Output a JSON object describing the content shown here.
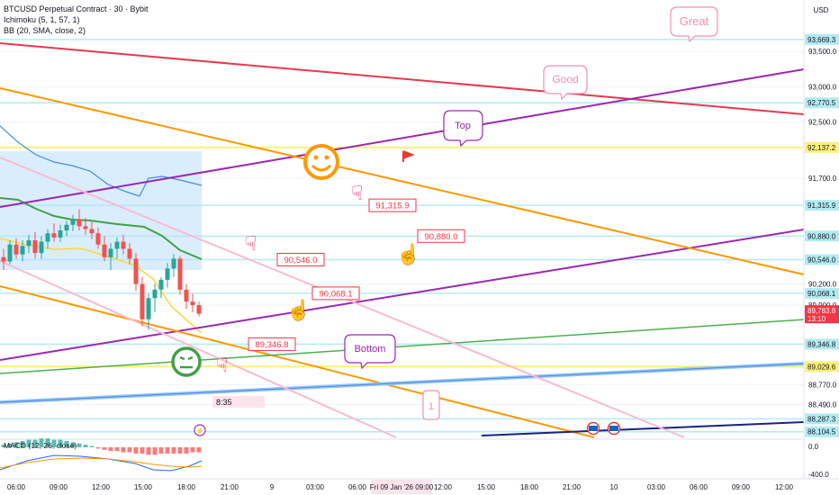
{
  "header": {
    "symbol": "BTCUSD Perpetual Contract · 30 · Bybit",
    "ichimoku": "Ichimoku (5, 1, 57, 1)",
    "bb": "BB (20, SMA, close, 2)",
    "currency": "USD"
  },
  "price_axis": {
    "min": 88050,
    "max": 94050,
    "ticks": [
      {
        "label": "93,500.0",
        "value": 93500
      },
      {
        "label": "93,000.0",
        "value": 93000
      },
      {
        "label": "92,500.0",
        "value": 92500
      },
      {
        "label": "91,700.0",
        "value": 91700
      },
      {
        "label": "90,200.0",
        "value": 90200
      },
      {
        "label": "89,900.0",
        "value": 89900
      },
      {
        "label": "88,770.0",
        "value": 88770
      },
      {
        "label": "88,490.0",
        "value": 88490
      }
    ],
    "highlighted": [
      {
        "label": "93,669.3",
        "value": 93669.3,
        "color": "#b2ebf2"
      },
      {
        "label": "92,770.5",
        "value": 92770.5,
        "color": "#b2ebf2"
      },
      {
        "label": "92,137.2",
        "value": 92137.2,
        "color": "#fff176"
      },
      {
        "label": "91,315.9",
        "value": 91315.9,
        "color": "#b2ebf2"
      },
      {
        "label": "90,880.0",
        "value": 90880,
        "color": "#b2ebf2"
      },
      {
        "label": "90,546.0",
        "value": 90546,
        "color": "#b2ebf2"
      },
      {
        "label": "90,068.1",
        "value": 90068.1,
        "color": "#b2ebf2"
      },
      {
        "label": "89,346.8",
        "value": 89346.8,
        "color": "#b2ebf2"
      },
      {
        "label": "89,029.6",
        "value": 89029.6,
        "color": "#fff176"
      },
      {
        "label": "88,287.3",
        "value": 88287.3,
        "color": "#b2ebf2"
      },
      {
        "label": "88,104.5",
        "value": 88104.5,
        "color": "#b2ebf2"
      }
    ],
    "current_price": {
      "label": "89,783.8",
      "timer": "13:10",
      "value": 89783.8,
      "color": "#f23645"
    },
    "macd_ticks": [
      "0.0",
      "-400.0"
    ]
  },
  "time_axis": {
    "ticks": [
      "06:00",
      "09:00",
      "12:00",
      "15:00",
      "18:00",
      "21:00",
      "9",
      "03:00",
      "06:00",
      "12:00",
      "15:00",
      "18:00",
      "21:00",
      "10",
      "03:00",
      "06:00",
      "09:00",
      "12:00"
    ],
    "highlight": "Fri 09 Jan '26  09:00"
  },
  "chart_data": {
    "type": "candlestick",
    "candles": [
      {
        "o": 90580,
        "h": 90700,
        "l": 90400,
        "c": 90520
      },
      {
        "o": 90520,
        "h": 90820,
        "l": 90480,
        "c": 90760
      },
      {
        "o": 90760,
        "h": 90850,
        "l": 90560,
        "c": 90620
      },
      {
        "o": 90620,
        "h": 90820,
        "l": 90520,
        "c": 90740
      },
      {
        "o": 90740,
        "h": 90900,
        "l": 90640,
        "c": 90820
      },
      {
        "o": 90820,
        "h": 90940,
        "l": 90560,
        "c": 90640
      },
      {
        "o": 90640,
        "h": 90880,
        "l": 90560,
        "c": 90800
      },
      {
        "o": 90800,
        "h": 90980,
        "l": 90700,
        "c": 90920
      },
      {
        "o": 90920,
        "h": 91060,
        "l": 90800,
        "c": 90860
      },
      {
        "o": 90860,
        "h": 91040,
        "l": 90800,
        "c": 90960
      },
      {
        "o": 90960,
        "h": 91100,
        "l": 90880,
        "c": 91040
      },
      {
        "o": 91040,
        "h": 91180,
        "l": 90950,
        "c": 91120
      },
      {
        "o": 91120,
        "h": 91260,
        "l": 90960,
        "c": 91020
      },
      {
        "o": 91020,
        "h": 91140,
        "l": 90900,
        "c": 90980
      },
      {
        "o": 90980,
        "h": 91080,
        "l": 90840,
        "c": 90920
      },
      {
        "o": 90920,
        "h": 91000,
        "l": 90700,
        "c": 90760
      },
      {
        "o": 90760,
        "h": 90880,
        "l": 90520,
        "c": 90580
      },
      {
        "o": 90580,
        "h": 90780,
        "l": 90400,
        "c": 90700
      },
      {
        "o": 90700,
        "h": 90860,
        "l": 90560,
        "c": 90800
      },
      {
        "o": 90800,
        "h": 90900,
        "l": 90620,
        "c": 90700
      },
      {
        "o": 90700,
        "h": 90780,
        "l": 90480,
        "c": 90560
      },
      {
        "o": 90560,
        "h": 90640,
        "l": 90100,
        "c": 90200
      },
      {
        "o": 90200,
        "h": 90300,
        "l": 89600,
        "c": 89700
      },
      {
        "o": 89700,
        "h": 90060,
        "l": 89550,
        "c": 90000
      },
      {
        "o": 90000,
        "h": 90200,
        "l": 89800,
        "c": 90120
      },
      {
        "o": 90120,
        "h": 90300,
        "l": 90000,
        "c": 90260
      },
      {
        "o": 90260,
        "h": 90500,
        "l": 90150,
        "c": 90420
      },
      {
        "o": 90420,
        "h": 90620,
        "l": 90300,
        "c": 90560
      },
      {
        "o": 90560,
        "h": 90600,
        "l": 90050,
        "c": 90120
      },
      {
        "o": 90120,
        "h": 90200,
        "l": 89850,
        "c": 89950
      },
      {
        "o": 89950,
        "h": 90060,
        "l": 89800,
        "c": 89900
      },
      {
        "o": 89900,
        "h": 89950,
        "l": 89740,
        "c": 89780
      }
    ],
    "candle_start_x": 4,
    "candle_step": 7,
    "horizontal_lines": [
      {
        "value": 93669.3,
        "color": "#b2ebf2"
      },
      {
        "value": 92770.5,
        "color": "#b2ebf2"
      },
      {
        "value": 92137.2,
        "color": "#fff176"
      },
      {
        "value": 91315.9,
        "color": "#b2ebf2"
      },
      {
        "value": 90880,
        "color": "#b2ebf2"
      },
      {
        "value": 90546,
        "color": "#b2ebf2"
      },
      {
        "value": 90068.1,
        "color": "#b2ebf2"
      },
      {
        "value": 89346.8,
        "color": "#b2ebf2"
      },
      {
        "value": 89029.6,
        "color": "#fff176"
      },
      {
        "value": 88287.3,
        "color": "#b2ebf2"
      },
      {
        "value": 88104.5,
        "color": "#b2ebf2"
      }
    ],
    "price_labels": [
      {
        "text": "91,315.9",
        "value": 91315.9
      },
      {
        "text": "90,880.0",
        "value": 90880
      },
      {
        "text": "90,546.0",
        "value": 90546
      },
      {
        "text": "90,068.1",
        "value": 90068.1
      },
      {
        "text": "89,346.8",
        "value": 89346.8
      }
    ],
    "callouts": [
      {
        "text": "Great",
        "color": "#f48fb1"
      },
      {
        "text": "Good",
        "color": "#f48fb1"
      },
      {
        "text": "Top",
        "color": "#9c27b0"
      },
      {
        "text": "Bottom",
        "color": "#9c27b0"
      },
      {
        "text": "1",
        "color": "#f48fb1"
      }
    ],
    "countdown": "8:35",
    "macd": {
      "label": "MACD (12, 26, close)"
    }
  },
  "colors": {
    "up": "#26a69a",
    "down": "#ef5350",
    "orange": "#ff9800",
    "purple": "#9c27b0",
    "red": "#f23645",
    "green": "#4caf50",
    "pink": "#f8bbd0",
    "blue": "#90caf9",
    "navy": "#1a237e"
  }
}
